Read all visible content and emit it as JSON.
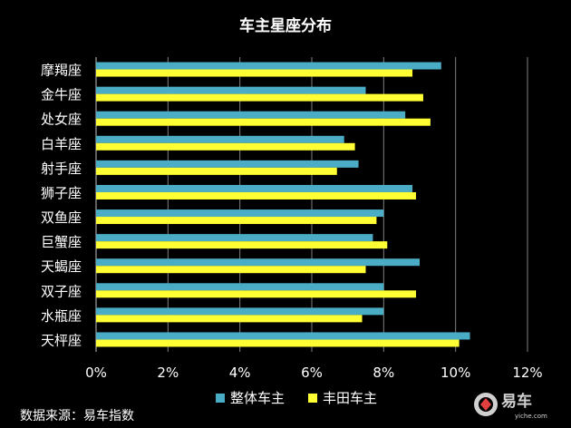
{
  "chart_data": {
    "type": "bar",
    "orientation": "horizontal",
    "title": "车主星座分布",
    "categories": [
      "摩羯座",
      "金牛座",
      "处女座",
      "白羊座",
      "射手座",
      "狮子座",
      "双鱼座",
      "巨蟹座",
      "天蝎座",
      "双子座",
      "水瓶座",
      "天枰座"
    ],
    "series": [
      {
        "name": "整体车主",
        "color": "#4bacc6",
        "values": [
          9.6,
          7.5,
          8.6,
          6.9,
          7.3,
          8.8,
          8.0,
          7.7,
          9.0,
          8.0,
          8.0,
          10.4
        ]
      },
      {
        "name": "丰田车主",
        "color": "#ffff33",
        "values": [
          8.8,
          9.1,
          9.3,
          7.2,
          6.7,
          8.9,
          7.8,
          8.1,
          7.5,
          8.9,
          7.4,
          10.1
        ]
      }
    ],
    "xlim": [
      0,
      12
    ],
    "xticks": [
      0,
      2,
      4,
      6,
      8,
      10,
      12
    ],
    "xtick_labels": [
      "0%",
      "2%",
      "4%",
      "6%",
      "8%",
      "10%",
      "12%"
    ],
    "grid": true,
    "legend_position": "bottom"
  },
  "source_text": "数据来源：易车指数",
  "logo": {
    "name": "易车",
    "sub": "yiche.com"
  }
}
